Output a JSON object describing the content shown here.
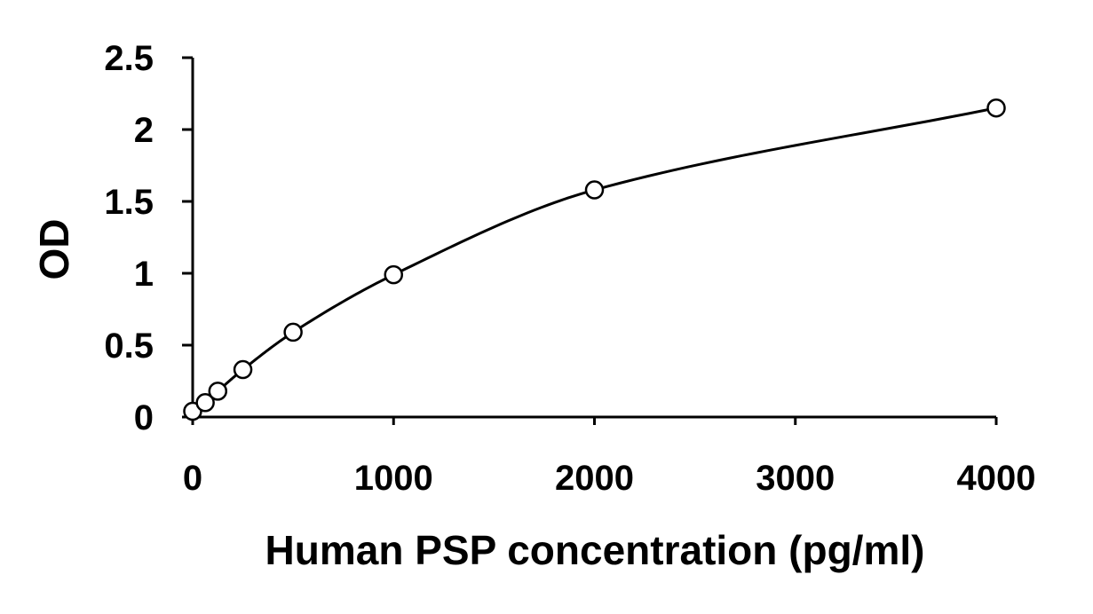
{
  "chart_data": {
    "type": "scatter",
    "title": "",
    "xlabel": "Human PSP concentration (pg/ml)",
    "ylabel": "OD",
    "xlim": [
      0,
      4000
    ],
    "ylim": [
      0,
      2.5
    ],
    "x_ticks": [
      "0",
      "1000",
      "2000",
      "3000",
      "4000"
    ],
    "y_ticks": [
      "0",
      "0.5",
      "1",
      "1.5",
      "2",
      "2.5"
    ],
    "grid": false,
    "legend": "none",
    "series": [
      {
        "points": [
          {
            "x": 0,
            "y": 0.04
          },
          {
            "x": 62.5,
            "y": 0.1
          },
          {
            "x": 125,
            "y": 0.18
          },
          {
            "x": 250,
            "y": 0.33
          },
          {
            "x": 500,
            "y": 0.59
          },
          {
            "x": 1000,
            "y": 0.99
          },
          {
            "x": 2000,
            "y": 1.58
          },
          {
            "x": 4000,
            "y": 2.15
          }
        ],
        "marker": "open-circle",
        "trendline": "smooth-curve",
        "color": "#000000"
      }
    ]
  }
}
